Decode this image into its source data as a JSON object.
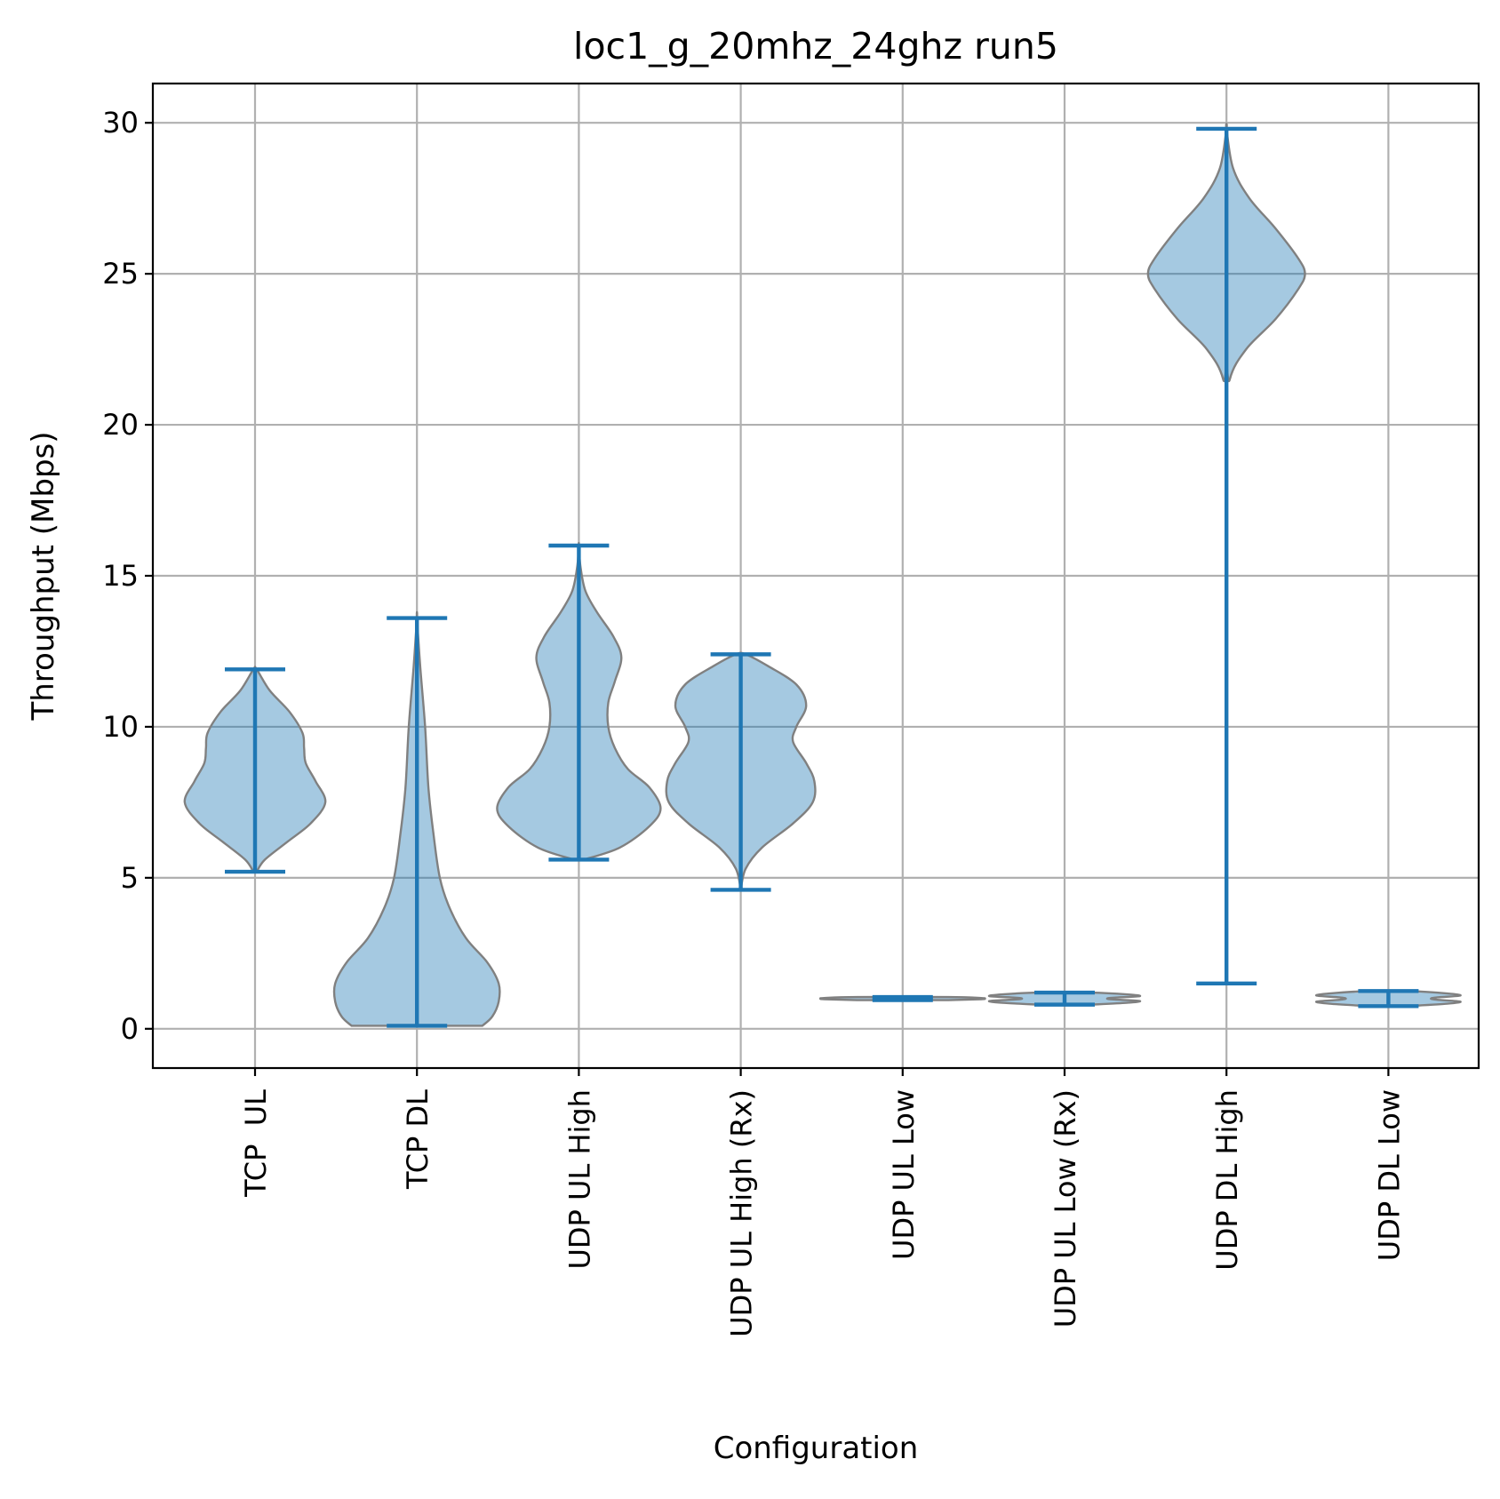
{
  "chart_data": {
    "type": "violin",
    "title": "loc1_g_20mhz_24ghz run5",
    "xlabel": "Configuration",
    "ylabel": "Throughput (Mbps)",
    "ylim": [
      -1.3,
      31.3
    ],
    "yticks": [
      0,
      5,
      10,
      15,
      20,
      25,
      30
    ],
    "grid": true,
    "colors": {
      "body_fill": "#1f77b4",
      "body_fill_opacity": 0.4,
      "body_edge": "#808080",
      "line": "#1f77b4"
    },
    "categories": [
      "TCP  UL",
      "TCP DL",
      "UDP UL High",
      "UDP UL High (Rx)",
      "UDP UL Low",
      "UDP UL Low (Rx)",
      "UDP DL High",
      "UDP DL Low"
    ],
    "violins": [
      {
        "label": "TCP  UL",
        "min": 5.2,
        "max": 11.9,
        "profile": [
          [
            5.2,
            0.01
          ],
          [
            5.6,
            0.06
          ],
          [
            6.2,
            0.2
          ],
          [
            6.8,
            0.34
          ],
          [
            7.5,
            0.43
          ],
          [
            8.2,
            0.37
          ],
          [
            8.8,
            0.31
          ],
          [
            9.3,
            0.3
          ],
          [
            9.8,
            0.29
          ],
          [
            10.5,
            0.21
          ],
          [
            11.2,
            0.09
          ],
          [
            11.9,
            0.01
          ]
        ]
      },
      {
        "label": "TCP DL",
        "min": 0.1,
        "max": 13.6,
        "profile": [
          [
            0.1,
            0.4
          ],
          [
            0.4,
            0.46
          ],
          [
            0.9,
            0.5
          ],
          [
            1.5,
            0.5
          ],
          [
            2.2,
            0.43
          ],
          [
            3.0,
            0.3
          ],
          [
            4.0,
            0.2
          ],
          [
            5.0,
            0.14
          ],
          [
            6.5,
            0.1
          ],
          [
            8.0,
            0.07
          ],
          [
            10.0,
            0.05
          ],
          [
            12.0,
            0.02
          ],
          [
            13.6,
            0.0
          ]
        ]
      },
      {
        "label": "UDP UL High",
        "min": 5.6,
        "max": 16.0,
        "profile": [
          [
            5.6,
            0.03
          ],
          [
            6.0,
            0.25
          ],
          [
            6.7,
            0.43
          ],
          [
            7.3,
            0.5
          ],
          [
            8.0,
            0.43
          ],
          [
            8.6,
            0.3
          ],
          [
            9.3,
            0.22
          ],
          [
            10.0,
            0.18
          ],
          [
            10.8,
            0.18
          ],
          [
            11.5,
            0.22
          ],
          [
            12.3,
            0.26
          ],
          [
            13.0,
            0.21
          ],
          [
            13.8,
            0.11
          ],
          [
            14.5,
            0.04
          ],
          [
            15.3,
            0.01
          ],
          [
            16.0,
            0.0
          ]
        ]
      },
      {
        "label": "UDP UL High (Rx)",
        "min": 4.6,
        "max": 12.4,
        "profile": [
          [
            4.6,
            0.0
          ],
          [
            5.3,
            0.03
          ],
          [
            6.0,
            0.13
          ],
          [
            6.8,
            0.32
          ],
          [
            7.5,
            0.44
          ],
          [
            8.2,
            0.45
          ],
          [
            8.8,
            0.4
          ],
          [
            9.5,
            0.32
          ],
          [
            10.0,
            0.34
          ],
          [
            10.7,
            0.4
          ],
          [
            11.4,
            0.34
          ],
          [
            12.0,
            0.17
          ],
          [
            12.4,
            0.03
          ]
        ]
      },
      {
        "label": "UDP UL Low",
        "min": 0.95,
        "max": 1.05,
        "profile": [
          [
            0.95,
            0.28
          ],
          [
            0.98,
            0.48
          ],
          [
            1.0,
            0.5
          ],
          [
            1.02,
            0.48
          ],
          [
            1.05,
            0.28
          ]
        ]
      },
      {
        "label": "UDP UL Low (Rx)",
        "min": 0.8,
        "max": 1.2,
        "profile": [
          [
            0.8,
            0.16
          ],
          [
            0.86,
            0.38
          ],
          [
            0.92,
            0.46
          ],
          [
            0.97,
            0.3
          ],
          [
            1.0,
            0.26
          ],
          [
            1.03,
            0.3
          ],
          [
            1.08,
            0.46
          ],
          [
            1.14,
            0.38
          ],
          [
            1.2,
            0.16
          ]
        ]
      },
      {
        "label": "UDP DL High",
        "min": 1.5,
        "max": 29.8,
        "profile": [
          [
            1.5,
            0.0
          ],
          [
            20.0,
            0.0
          ],
          [
            21.5,
            0.02
          ],
          [
            22.5,
            0.12
          ],
          [
            23.5,
            0.3
          ],
          [
            24.5,
            0.44
          ],
          [
            25.0,
            0.48
          ],
          [
            25.5,
            0.44
          ],
          [
            26.5,
            0.3
          ],
          [
            27.5,
            0.14
          ],
          [
            28.5,
            0.04
          ],
          [
            29.8,
            0.0
          ]
        ]
      },
      {
        "label": "UDP DL Low",
        "min": 0.75,
        "max": 1.25,
        "profile": [
          [
            0.75,
            0.12
          ],
          [
            0.83,
            0.36
          ],
          [
            0.9,
            0.44
          ],
          [
            0.96,
            0.3
          ],
          [
            1.0,
            0.26
          ],
          [
            1.04,
            0.3
          ],
          [
            1.1,
            0.44
          ],
          [
            1.17,
            0.36
          ],
          [
            1.25,
            0.12
          ]
        ]
      }
    ]
  }
}
